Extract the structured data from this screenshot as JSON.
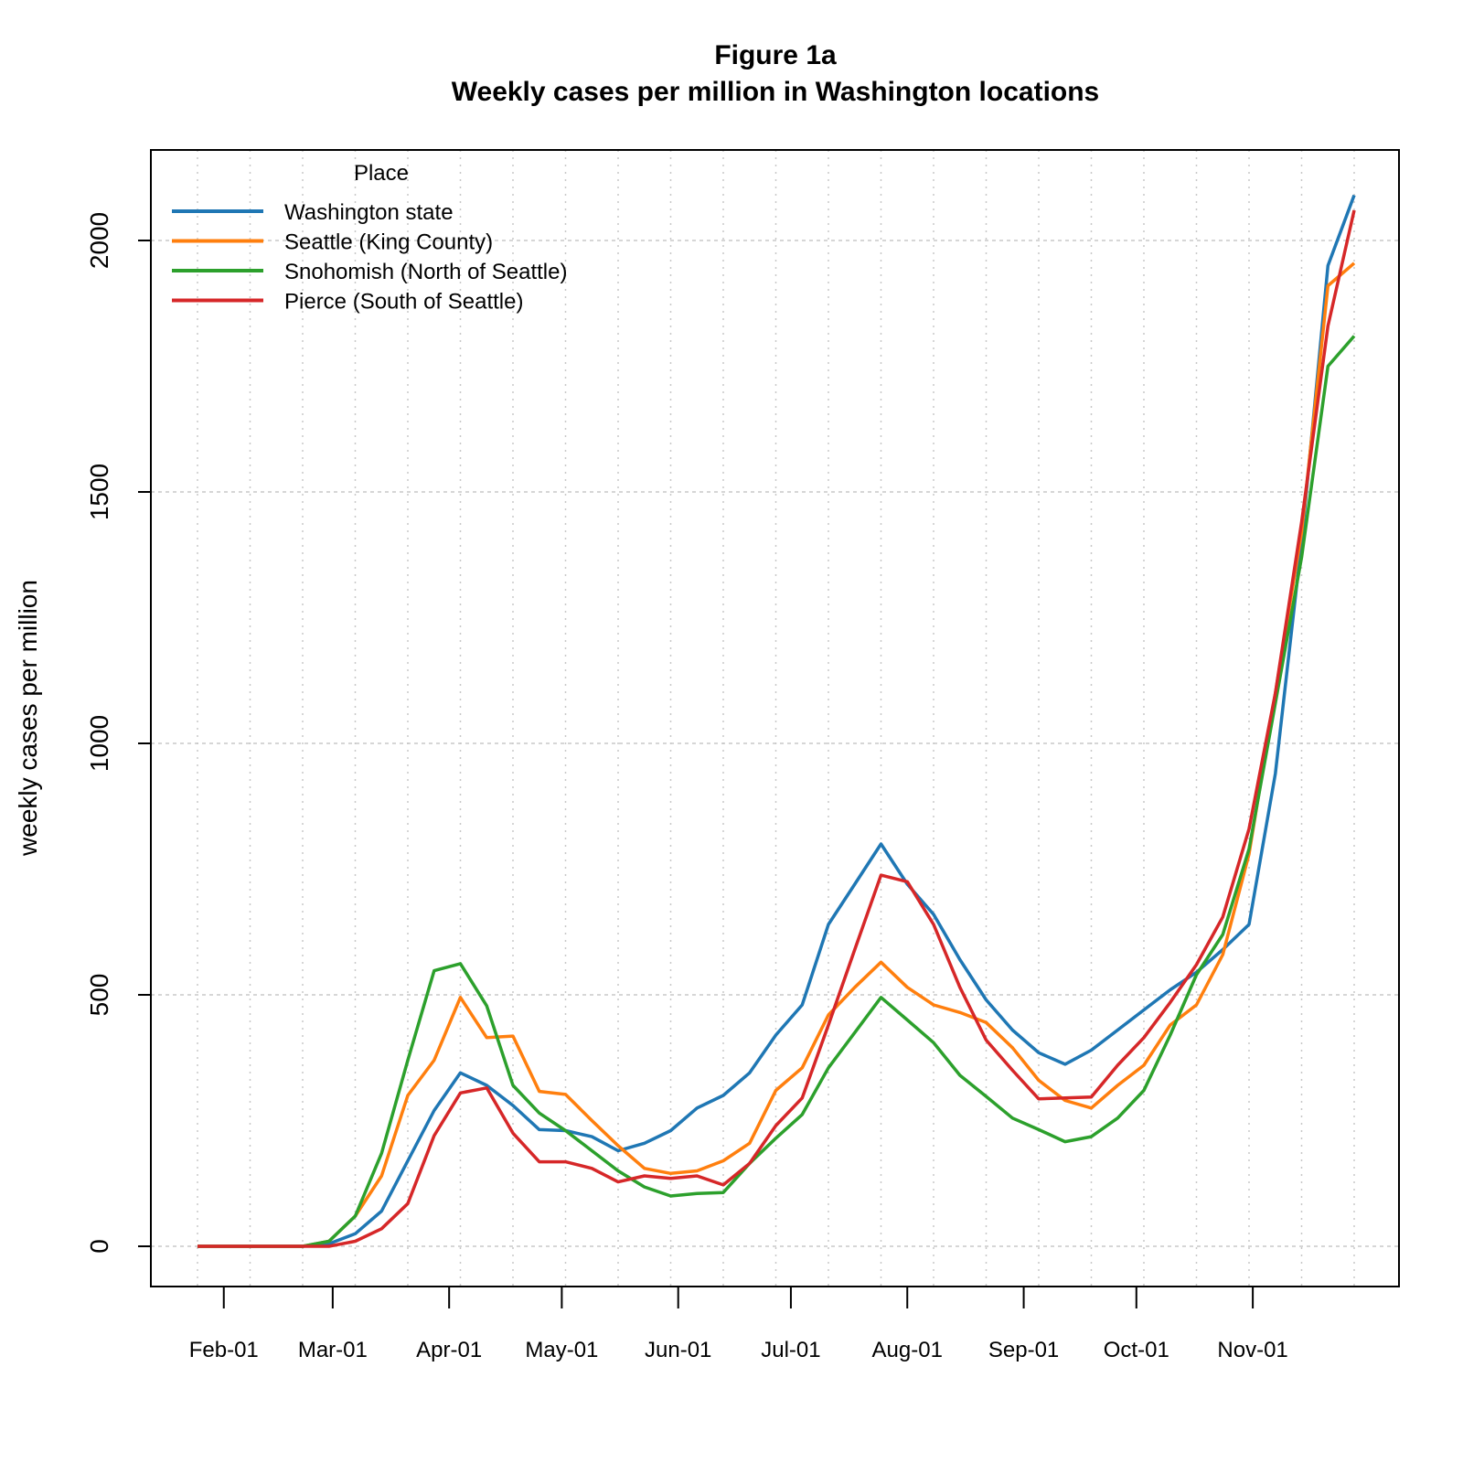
{
  "chart_data": {
    "type": "line",
    "title": "Figure 1a",
    "subtitle": "Weekly cases per million in Washington locations",
    "xlabel": "",
    "ylabel": "weekly cases per million",
    "ylim": [
      -80,
      2180
    ],
    "yticks": [
      0,
      500,
      1000,
      1500,
      2000
    ],
    "xticks": [
      "Feb-01",
      "Mar-01",
      "Apr-01",
      "May-01",
      "Jun-01",
      "Jul-01",
      "Aug-01",
      "Sep-01",
      "Oct-01",
      "Nov-01"
    ],
    "grid": true,
    "legend": {
      "title": "Place",
      "position": "top-left"
    },
    "x": [
      "2020-01-25",
      "2020-02-01",
      "2020-02-08",
      "2020-02-15",
      "2020-02-22",
      "2020-02-29",
      "2020-03-07",
      "2020-03-14",
      "2020-03-21",
      "2020-03-28",
      "2020-04-04",
      "2020-04-11",
      "2020-04-18",
      "2020-04-25",
      "2020-05-02",
      "2020-05-09",
      "2020-05-16",
      "2020-05-23",
      "2020-05-30",
      "2020-06-06",
      "2020-06-13",
      "2020-06-20",
      "2020-06-27",
      "2020-07-04",
      "2020-07-11",
      "2020-07-18",
      "2020-07-25",
      "2020-08-01",
      "2020-08-08",
      "2020-08-15",
      "2020-08-22",
      "2020-08-29",
      "2020-09-05",
      "2020-09-12",
      "2020-09-19",
      "2020-09-26",
      "2020-10-03",
      "2020-10-10",
      "2020-10-17",
      "2020-10-24",
      "2020-10-31",
      "2020-11-07",
      "2020-11-14",
      "2020-11-21",
      "2020-11-28"
    ],
    "series": [
      {
        "name": "Washington state",
        "color": "#1f77b4",
        "values": [
          0,
          0,
          0,
          0,
          0,
          5,
          25,
          70,
          170,
          270,
          345,
          320,
          280,
          232,
          230,
          218,
          190,
          205,
          230,
          275,
          300,
          345,
          420,
          480,
          640,
          720,
          800,
          720,
          660,
          570,
          490,
          430,
          385,
          362,
          390,
          430,
          470,
          510,
          545,
          590,
          640,
          940,
          1400,
          1950,
          2090
        ]
      },
      {
        "name": "Seattle (King County)",
        "color": "#ff7f0e",
        "values": [
          0,
          0,
          0,
          0,
          0,
          10,
          60,
          140,
          300,
          370,
          495,
          415,
          418,
          308,
          302,
          250,
          200,
          155,
          145,
          150,
          170,
          205,
          310,
          355,
          460,
          515,
          565,
          515,
          480,
          465,
          445,
          395,
          330,
          290,
          275,
          320,
          360,
          440,
          480,
          580,
          780,
          1100,
          1420,
          1910,
          1955
        ]
      },
      {
        "name": "Snohomish (North of Seattle)",
        "color": "#2ca02c",
        "values": [
          0,
          0,
          0,
          0,
          0,
          10,
          60,
          185,
          370,
          548,
          562,
          478,
          320,
          265,
          230,
          190,
          150,
          118,
          100,
          105,
          107,
          165,
          215,
          262,
          355,
          425,
          495,
          450,
          405,
          340,
          298,
          255,
          232,
          208,
          218,
          255,
          310,
          420,
          540,
          620,
          790,
          1080,
          1370,
          1750,
          1810
        ]
      },
      {
        "name": "Pierce (South of Seattle)",
        "color": "#d62728",
        "values": [
          0,
          0,
          0,
          0,
          0,
          0,
          10,
          35,
          85,
          220,
          305,
          315,
          225,
          168,
          168,
          155,
          128,
          140,
          135,
          140,
          122,
          165,
          240,
          295,
          440,
          590,
          738,
          725,
          640,
          515,
          410,
          350,
          293,
          295,
          297,
          360,
          415,
          485,
          560,
          655,
          830,
          1100,
          1440,
          1830,
          2060
        ]
      }
    ]
  }
}
